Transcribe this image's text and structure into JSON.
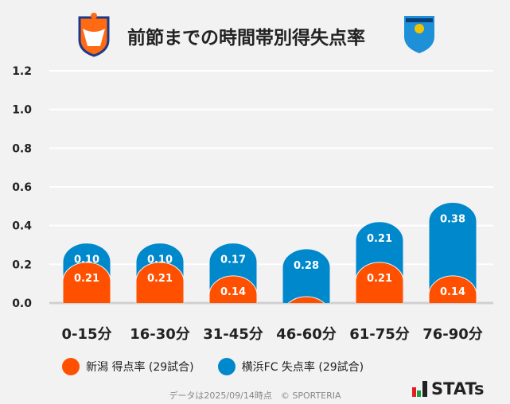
{
  "title": "前節までの時間帯別得失点率",
  "logos": {
    "left": "ALBIREX",
    "right": "YOKOHAMA FC"
  },
  "chart_data": {
    "type": "bar",
    "stacked": true,
    "categories": [
      "0-15分",
      "16-30分",
      "31-45分",
      "46-60分",
      "61-75分",
      "76-90分"
    ],
    "series": [
      {
        "name": "新潟 得点率 (29試合)",
        "values": [
          0.21,
          0.21,
          0.14,
          0.0,
          0.21,
          0.14
        ],
        "color": "#ff5000"
      },
      {
        "name": "横浜FC 失点率 (29試合)",
        "values": [
          0.1,
          0.1,
          0.17,
          0.28,
          0.21,
          0.38
        ],
        "color": "#0088cc"
      }
    ],
    "yticks": [
      "0.0",
      "0.2",
      "0.4",
      "0.6",
      "0.8",
      "1.0",
      "1.2"
    ],
    "ylim": [
      0,
      1.2
    ],
    "grid": true,
    "legend": "bottom"
  },
  "footer": "データは2025/09/14時点　© SPORTERIA",
  "brand": "STATs"
}
